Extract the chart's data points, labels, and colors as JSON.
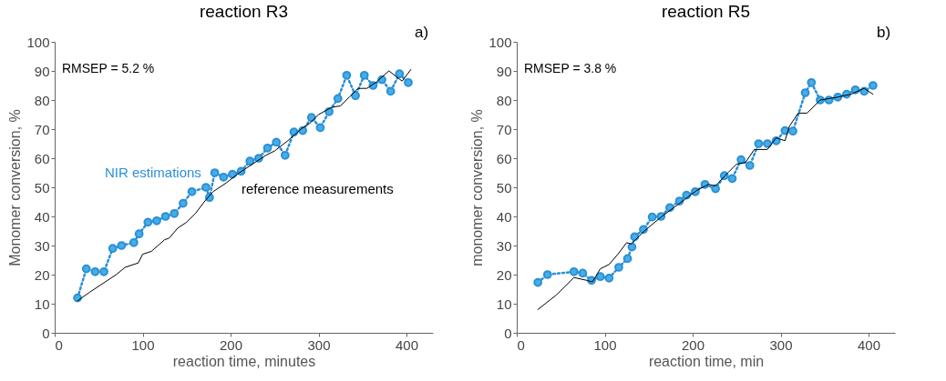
{
  "chart_data": [
    {
      "type": "line",
      "title": "reaction R3",
      "xlabel": "reaction time, minutes",
      "ylabel": "Monomer conversion, %",
      "annotations": [
        "RMSEP = 5.2 %",
        "a)"
      ],
      "xlim": [
        0,
        430
      ],
      "xticks": [
        0,
        100,
        200,
        300,
        400
      ],
      "ylim": [
        0,
        100
      ],
      "yticks": [
        0,
        10,
        20,
        30,
        40,
        50,
        60,
        70,
        80,
        90,
        100
      ],
      "grid": false,
      "legend": false,
      "series": [
        {
          "name": "NIR estimations",
          "color": "#2b8fd6",
          "marker": "circle",
          "line_style": "dotted",
          "x": [
            26,
            36,
            46,
            56,
            66,
            76,
            90,
            96,
            106,
            116,
            126,
            136,
            146,
            156,
            172,
            176,
            182,
            192,
            202,
            212,
            222,
            232,
            242,
            252,
            262,
            272,
            282,
            292,
            302,
            312,
            322,
            332,
            342,
            352,
            362,
            372,
            382,
            392,
            402
          ],
          "values": [
            12,
            22,
            21,
            21,
            29,
            30,
            31,
            34,
            38,
            38.5,
            40,
            41,
            44.5,
            48.5,
            50,
            46.5,
            55,
            53.5,
            54.5,
            55.5,
            59,
            60,
            63.5,
            65.5,
            61,
            69,
            69.5,
            74,
            70.5,
            76,
            80.5,
            88.5,
            81.5,
            88.5,
            85,
            87,
            83,
            89,
            86
          ]
        },
        {
          "name": "reference measurements",
          "color": "#000000",
          "marker": "none",
          "line_style": "solid",
          "x": [
            26,
            40,
            55,
            70,
            80,
            95,
            100,
            110,
            125,
            130,
            140,
            150,
            160,
            170,
            180,
            195,
            210,
            225,
            240,
            250,
            265,
            280,
            290,
            300,
            315,
            325,
            335,
            345,
            355,
            365,
            380,
            395,
            405
          ],
          "values": [
            11,
            14,
            17,
            20,
            22.5,
            24,
            27,
            28,
            32,
            32.5,
            36,
            38,
            41,
            45,
            48.5,
            51.5,
            55,
            58,
            61,
            62.5,
            66,
            70,
            72,
            75,
            77.5,
            78,
            81,
            84,
            84,
            86,
            90,
            86.5,
            90.5
          ]
        }
      ]
    },
    {
      "type": "line",
      "title": "reaction R5",
      "xlabel": "reaction time, min",
      "ylabel": "monomer conversion, %",
      "annotations": [
        "RMSEP = 3.8 %",
        "b)"
      ],
      "xlim": [
        0,
        430
      ],
      "xticks": [
        0,
        100,
        200,
        300,
        400
      ],
      "ylim": [
        0,
        100
      ],
      "yticks": [
        0,
        10,
        20,
        30,
        40,
        50,
        60,
        70,
        80,
        90,
        100
      ],
      "grid": false,
      "legend": false,
      "series": [
        {
          "color": "#2b8fd6",
          "marker": "circle",
          "line_style": "dotted",
          "x": [
            24,
            35,
            65,
            75,
            85,
            95,
            105,
            116,
            126,
            131,
            134,
            144,
            154,
            164,
            174,
            185,
            193,
            203,
            214,
            226,
            236,
            245,
            255,
            265,
            275,
            285,
            295,
            305,
            314,
            328,
            335,
            345,
            355,
            365,
            375,
            385,
            395,
            405
          ],
          "values": [
            17.3,
            20,
            21,
            20.5,
            18,
            19.3,
            18.8,
            22.5,
            25.5,
            29.5,
            33,
            35.5,
            39.8,
            40,
            43,
            45.3,
            47.3,
            48.5,
            51,
            49.5,
            54,
            53,
            59.5,
            57.5,
            65,
            65,
            66,
            69.5,
            69.3,
            82.5,
            86,
            80,
            80,
            81,
            82,
            83.5,
            83,
            85
          ]
        },
        {
          "color": "#000000",
          "marker": "none",
          "line_style": "solid",
          "x": [
            24,
            45,
            65,
            80,
            86,
            95,
            105,
            115,
            125,
            130,
            145,
            165,
            185,
            205,
            218,
            226,
            240,
            250,
            260,
            270,
            285,
            295,
            305,
            310,
            320,
            330,
            345,
            365,
            380,
            395,
            405
          ],
          "values": [
            8,
            13,
            19,
            18,
            17.5,
            22,
            23.5,
            27,
            31,
            30.5,
            35,
            40,
            44.5,
            49,
            51,
            50.5,
            55,
            58,
            58.5,
            63,
            63,
            67,
            66,
            71,
            75.5,
            75.5,
            80,
            81,
            82,
            84,
            82
          ]
        }
      ]
    }
  ]
}
